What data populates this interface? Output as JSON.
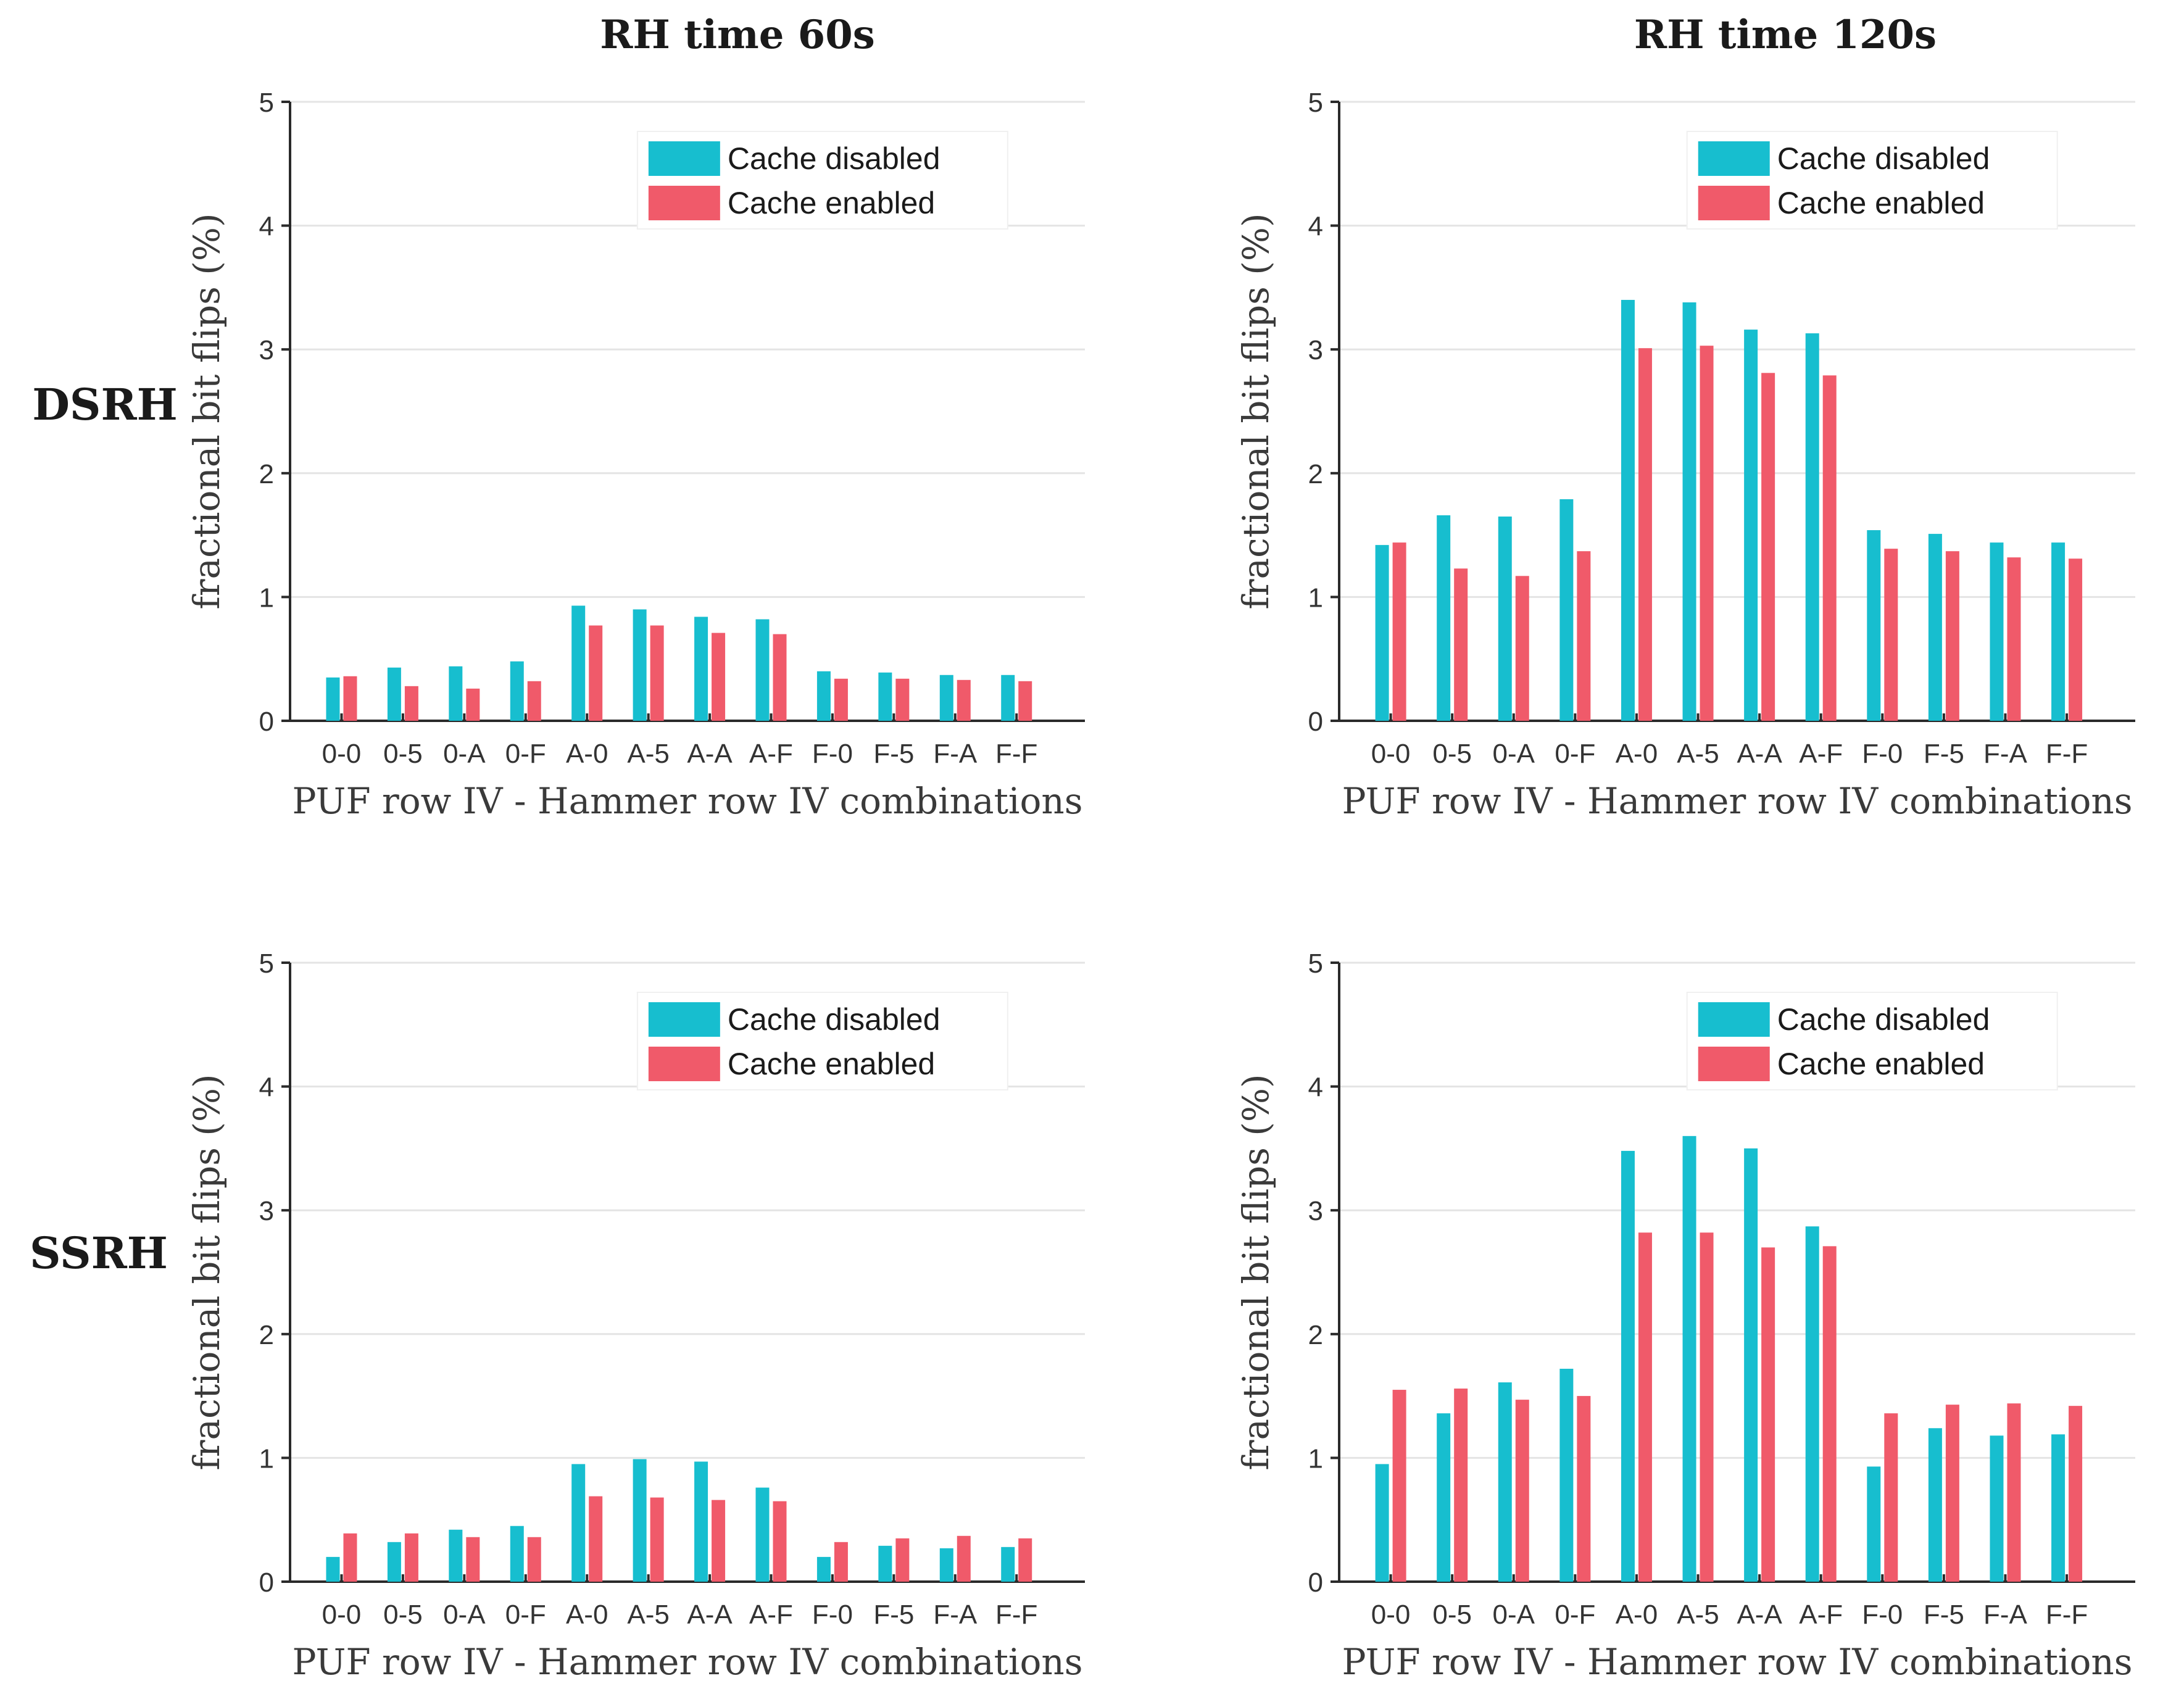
{
  "figure": {
    "column_titles": [
      "RH time 60s",
      "RH time 120s"
    ],
    "row_titles": [
      "DSRH",
      "SSRH"
    ]
  },
  "colors": {
    "cache_disabled": "#17becf",
    "cache_enabled": "#f05a6a"
  },
  "chart_data": [
    {
      "type": "bar",
      "panel": "DSRH / RH time 60s",
      "xlabel": "PUF row IV - Hammer row IV combinations",
      "ylabel": "fractional bit flips (%)",
      "ylim": [
        0,
        5
      ],
      "yticks": [
        "0",
        "1",
        "2",
        "3",
        "4",
        "5"
      ],
      "legend_position": "top-right",
      "categories": [
        "0-0",
        "0-5",
        "0-A",
        "0-F",
        "A-0",
        "A-5",
        "A-A",
        "A-F",
        "F-0",
        "F-5",
        "F-A",
        "F-F"
      ],
      "series": [
        {
          "name": "Cache disabled",
          "values": [
            0.35,
            0.43,
            0.44,
            0.48,
            0.93,
            0.9,
            0.84,
            0.82,
            0.4,
            0.39,
            0.37,
            0.37
          ]
        },
        {
          "name": "Cache enabled",
          "values": [
            0.36,
            0.28,
            0.26,
            0.32,
            0.77,
            0.77,
            0.71,
            0.7,
            0.34,
            0.34,
            0.33,
            0.32
          ]
        }
      ]
    },
    {
      "type": "bar",
      "panel": "DSRH / RH time 120s",
      "xlabel": "PUF row IV - Hammer row IV combinations",
      "ylabel": "fractional bit flips (%)",
      "ylim": [
        0,
        5
      ],
      "yticks": [
        "0",
        "1",
        "2",
        "3",
        "4",
        "5"
      ],
      "legend_position": "top-right",
      "categories": [
        "0-0",
        "0-5",
        "0-A",
        "0-F",
        "A-0",
        "A-5",
        "A-A",
        "A-F",
        "F-0",
        "F-5",
        "F-A",
        "F-F"
      ],
      "series": [
        {
          "name": "Cache disabled",
          "values": [
            1.42,
            1.66,
            1.65,
            1.79,
            3.4,
            3.38,
            3.16,
            3.13,
            1.54,
            1.51,
            1.44,
            1.44
          ]
        },
        {
          "name": "Cache enabled",
          "values": [
            1.44,
            1.23,
            1.17,
            1.37,
            3.01,
            3.03,
            2.81,
            2.79,
            1.39,
            1.37,
            1.32,
            1.31
          ]
        }
      ]
    },
    {
      "type": "bar",
      "panel": "SSRH / RH time 60s",
      "xlabel": "PUF row IV - Hammer row IV combinations",
      "ylabel": "fractional bit flips (%)",
      "ylim": [
        0,
        5
      ],
      "yticks": [
        "0",
        "1",
        "2",
        "3",
        "4",
        "5"
      ],
      "legend_position": "top-right",
      "categories": [
        "0-0",
        "0-5",
        "0-A",
        "0-F",
        "A-0",
        "A-5",
        "A-A",
        "A-F",
        "F-0",
        "F-5",
        "F-A",
        "F-F"
      ],
      "series": [
        {
          "name": "Cache disabled",
          "values": [
            0.2,
            0.32,
            0.42,
            0.45,
            0.95,
            0.99,
            0.97,
            0.76,
            0.2,
            0.29,
            0.27,
            0.28
          ]
        },
        {
          "name": "Cache enabled",
          "values": [
            0.39,
            0.39,
            0.36,
            0.36,
            0.69,
            0.68,
            0.66,
            0.65,
            0.32,
            0.35,
            0.37,
            0.35
          ]
        }
      ]
    },
    {
      "type": "bar",
      "panel": "SSRH / RH time 120s",
      "xlabel": "PUF row IV - Hammer row IV combinations",
      "ylabel": "fractional bit flips (%)",
      "ylim": [
        0,
        5
      ],
      "yticks": [
        "0",
        "1",
        "2",
        "3",
        "4",
        "5"
      ],
      "legend_position": "top-right",
      "categories": [
        "0-0",
        "0-5",
        "0-A",
        "0-F",
        "A-0",
        "A-5",
        "A-A",
        "A-F",
        "F-0",
        "F-5",
        "F-A",
        "F-F"
      ],
      "series": [
        {
          "name": "Cache disabled",
          "values": [
            0.95,
            1.36,
            1.61,
            1.72,
            3.48,
            3.6,
            3.5,
            2.87,
            0.93,
            1.24,
            1.18,
            1.19
          ]
        },
        {
          "name": "Cache enabled",
          "values": [
            1.55,
            1.56,
            1.47,
            1.5,
            2.82,
            2.82,
            2.7,
            2.71,
            1.36,
            1.43,
            1.44,
            1.42
          ]
        }
      ]
    }
  ]
}
